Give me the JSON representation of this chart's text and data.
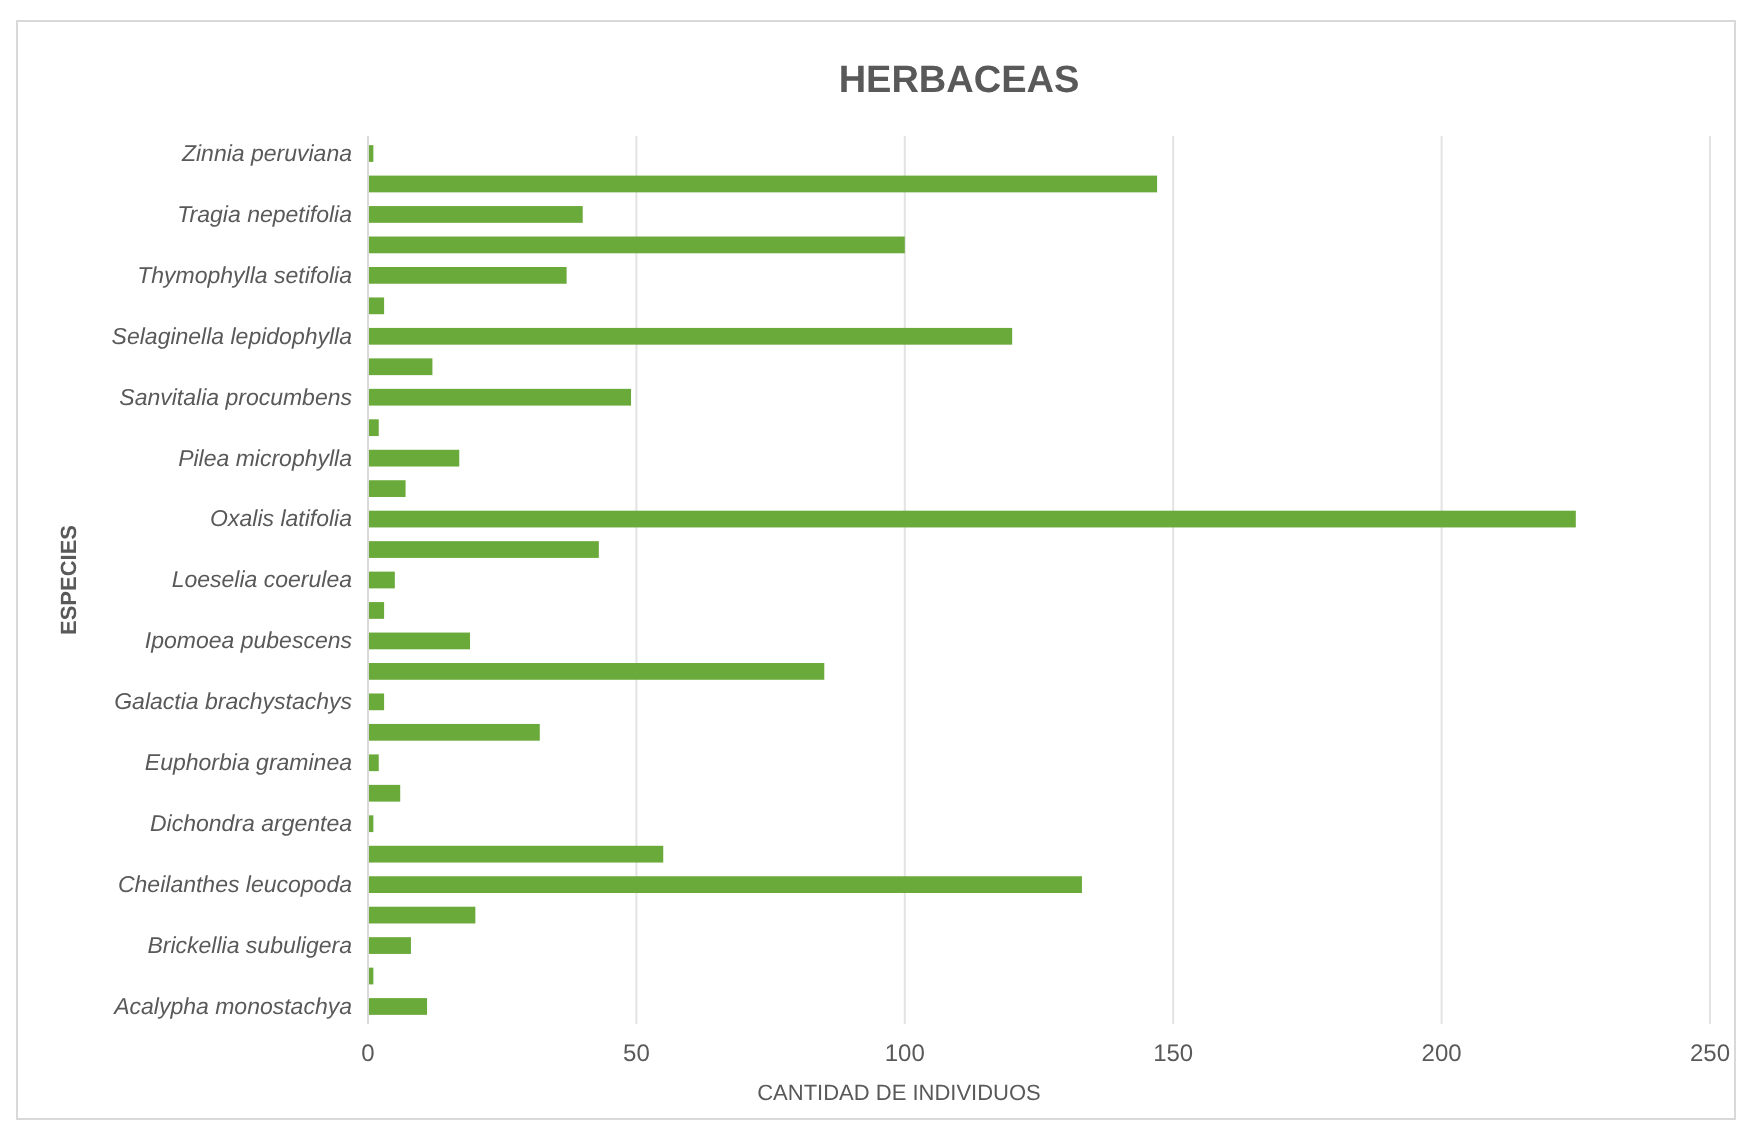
{
  "chart_data": {
    "type": "bar",
    "orientation": "horizontal",
    "title": "HERBACEAS",
    "xlabel": "CANTIDAD DE INDIVIDUOS",
    "ylabel": "ESPECIES",
    "categories": [
      "Zinnia peruviana",
      null,
      "Tragia nepetifolia",
      null,
      "Thymophylla setifolia",
      null,
      "Selaginella lepidophylla",
      null,
      "Sanvitalia procumbens",
      null,
      "Pilea microphylla",
      null,
      "Oxalis latifolia",
      null,
      "Loeselia coerulea",
      null,
      "Ipomoea pubescens",
      null,
      "Galactia brachystachys",
      null,
      "Euphorbia graminea",
      null,
      "Dichondra argentea",
      null,
      "Cheilanthes leucopoda",
      null,
      "Brickellia subuligera",
      null,
      "Acalypha monostachya"
    ],
    "values": [
      1,
      147,
      40,
      100,
      37,
      3,
      120,
      12,
      49,
      2,
      17,
      7,
      225,
      43,
      5,
      3,
      19,
      85,
      3,
      32,
      2,
      6,
      1,
      55,
      133,
      20,
      8,
      1,
      11
    ],
    "color": "#6aaa3a",
    "xlim": [
      0,
      250
    ],
    "xticks": [
      0,
      50,
      100,
      150,
      200,
      250
    ],
    "grid": "x"
  }
}
